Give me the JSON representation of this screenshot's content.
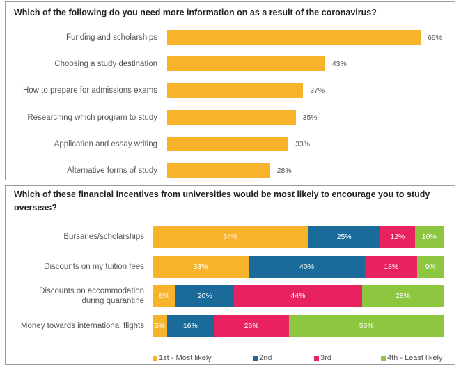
{
  "chart_data": [
    {
      "type": "bar",
      "orientation": "horizontal",
      "title": "Which of the following do you need more information on as a result of the coronavirus?",
      "categories": [
        "Funding and scholarships",
        "Choosing a study destination",
        "How to prepare for admissions exams",
        "Researching which program to study",
        "Application and essay writing",
        "Alternative forms of study"
      ],
      "values": [
        69,
        43,
        37,
        35,
        33,
        28
      ],
      "value_labels": [
        "69%",
        "43%",
        "37%",
        "35%",
        "33%",
        "28%"
      ],
      "color": "#f7b32b",
      "xlim": [
        0,
        69
      ],
      "grid": false
    },
    {
      "type": "bar",
      "orientation": "horizontal",
      "stacked": true,
      "title": "Which of these financial incentives from universities would be most likely to encourage you to study overseas?",
      "categories": [
        "Bursaries/scholarships",
        "Discounts on my tuition fees",
        "Discounts on accommodation during quarantine",
        "Money towards international flights"
      ],
      "series": [
        {
          "name": "1st - Most likely",
          "color": "#f7b32b",
          "values": [
            54,
            33,
            8,
            5
          ],
          "labels": [
            "54%",
            "33%",
            "8%",
            "5%"
          ]
        },
        {
          "name": "2nd",
          "color": "#1a6a9a",
          "values": [
            25,
            40,
            20,
            16
          ],
          "labels": [
            "25%",
            "40%",
            "20%",
            "16%"
          ]
        },
        {
          "name": "3rd",
          "color": "#e8215f",
          "values": [
            12,
            18,
            44,
            26
          ],
          "labels": [
            "12%",
            "18%",
            "44%",
            "26%"
          ]
        },
        {
          "name": "4th - Least likely",
          "color": "#8dc63f",
          "values": [
            10,
            9,
            28,
            53
          ],
          "labels": [
            "10%",
            "9%",
            "28%",
            "53%"
          ]
        }
      ],
      "legend": "bottom",
      "grid": false
    }
  ]
}
